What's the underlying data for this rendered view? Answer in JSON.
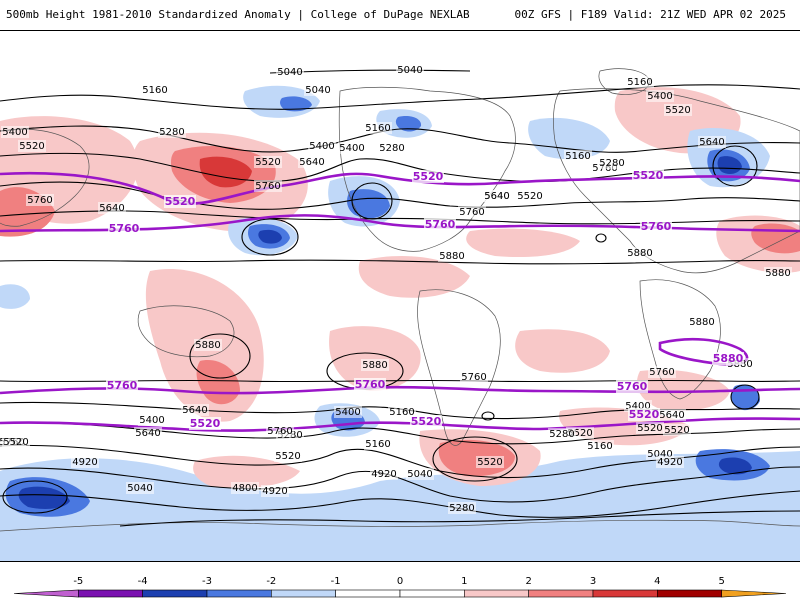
{
  "header": {
    "title": "500mb Height 1981-2010 Standardized Anomaly | College of DuPage NEXLAB",
    "run_info": "00Z GFS | F189 Valid: 21Z WED APR 02 2025"
  },
  "colors": {
    "anom_neg_5": "#c060d0",
    "anom_neg_4": "#7a10b0",
    "anom_neg_3": "#1c3fb0",
    "anom_neg_2": "#4a78e0",
    "anom_neg_1": "#c0d8f8",
    "anom_pos_1": "#f8c8c8",
    "anom_pos_2": "#f08080",
    "anom_pos_3": "#d83838",
    "anom_pos_4": "#a00000",
    "anom_pos_5": "#f0a020",
    "highlight_contour": "#9a16c8",
    "height_contour": "#000000",
    "coastline": "#555555"
  },
  "colorbar": {
    "ticks": [
      "-5",
      "-4",
      "-3",
      "-2",
      "-1",
      "0",
      "1",
      "2",
      "3",
      "4",
      "5"
    ]
  },
  "contour_labels": [
    {
      "text": "5040"
    },
    {
      "text": "5040"
    },
    {
      "text": "5160"
    },
    {
      "text": "5040"
    },
    {
      "text": "5160"
    },
    {
      "text": "5400"
    },
    {
      "text": "5520"
    },
    {
      "text": "5400"
    },
    {
      "text": "5280"
    },
    {
      "text": "5520"
    },
    {
      "text": "5640"
    },
    {
      "text": "5400"
    },
    {
      "text": "5160"
    },
    {
      "text": "5280"
    },
    {
      "text": "5520"
    },
    {
      "text": "5640"
    },
    {
      "text": "5760"
    },
    {
      "text": "5760"
    },
    {
      "text": "5640"
    },
    {
      "text": "5400"
    },
    {
      "text": "5640"
    },
    {
      "text": "5520"
    },
    {
      "text": "5760"
    },
    {
      "text": "5160"
    },
    {
      "text": "5280"
    },
    {
      "text": "5640"
    },
    {
      "text": "5760"
    },
    {
      "text": "5880"
    },
    {
      "text": "5880"
    },
    {
      "text": "5880"
    },
    {
      "text": "5880"
    },
    {
      "text": "5880"
    },
    {
      "text": "5880"
    },
    {
      "text": "5760"
    },
    {
      "text": "5640"
    },
    {
      "text": "5400"
    },
    {
      "text": "5760"
    },
    {
      "text": "5640"
    },
    {
      "text": "5400"
    },
    {
      "text": "5160"
    },
    {
      "text": "5280"
    },
    {
      "text": "5760"
    },
    {
      "text": "5520"
    },
    {
      "text": "5280"
    },
    {
      "text": "5520"
    },
    {
      "text": "5160"
    },
    {
      "text": "5040"
    },
    {
      "text": "4920"
    },
    {
      "text": "4920"
    },
    {
      "text": "4800"
    },
    {
      "text": "5040"
    },
    {
      "text": "4920"
    },
    {
      "text": "5280"
    },
    {
      "text": "5160"
    },
    {
      "text": "5040"
    },
    {
      "text": "4920"
    },
    {
      "text": "5400"
    },
    {
      "text": "5640"
    },
    {
      "text": "5520"
    },
    {
      "text": "5760"
    },
    {
      "text": "5880"
    },
    {
      "text": "5520"
    },
    {
      "text": "5520"
    },
    {
      "text": "5520"
    }
  ],
  "highlight_labels": [
    {
      "text": "5520"
    },
    {
      "text": "5520"
    },
    {
      "text": "5520"
    },
    {
      "text": "5760"
    },
    {
      "text": "5760"
    },
    {
      "text": "5760"
    },
    {
      "text": "5880"
    },
    {
      "text": "5760"
    },
    {
      "text": "5760"
    },
    {
      "text": "5760"
    },
    {
      "text": "5520"
    },
    {
      "text": "5520"
    },
    {
      "text": "5520"
    }
  ]
}
